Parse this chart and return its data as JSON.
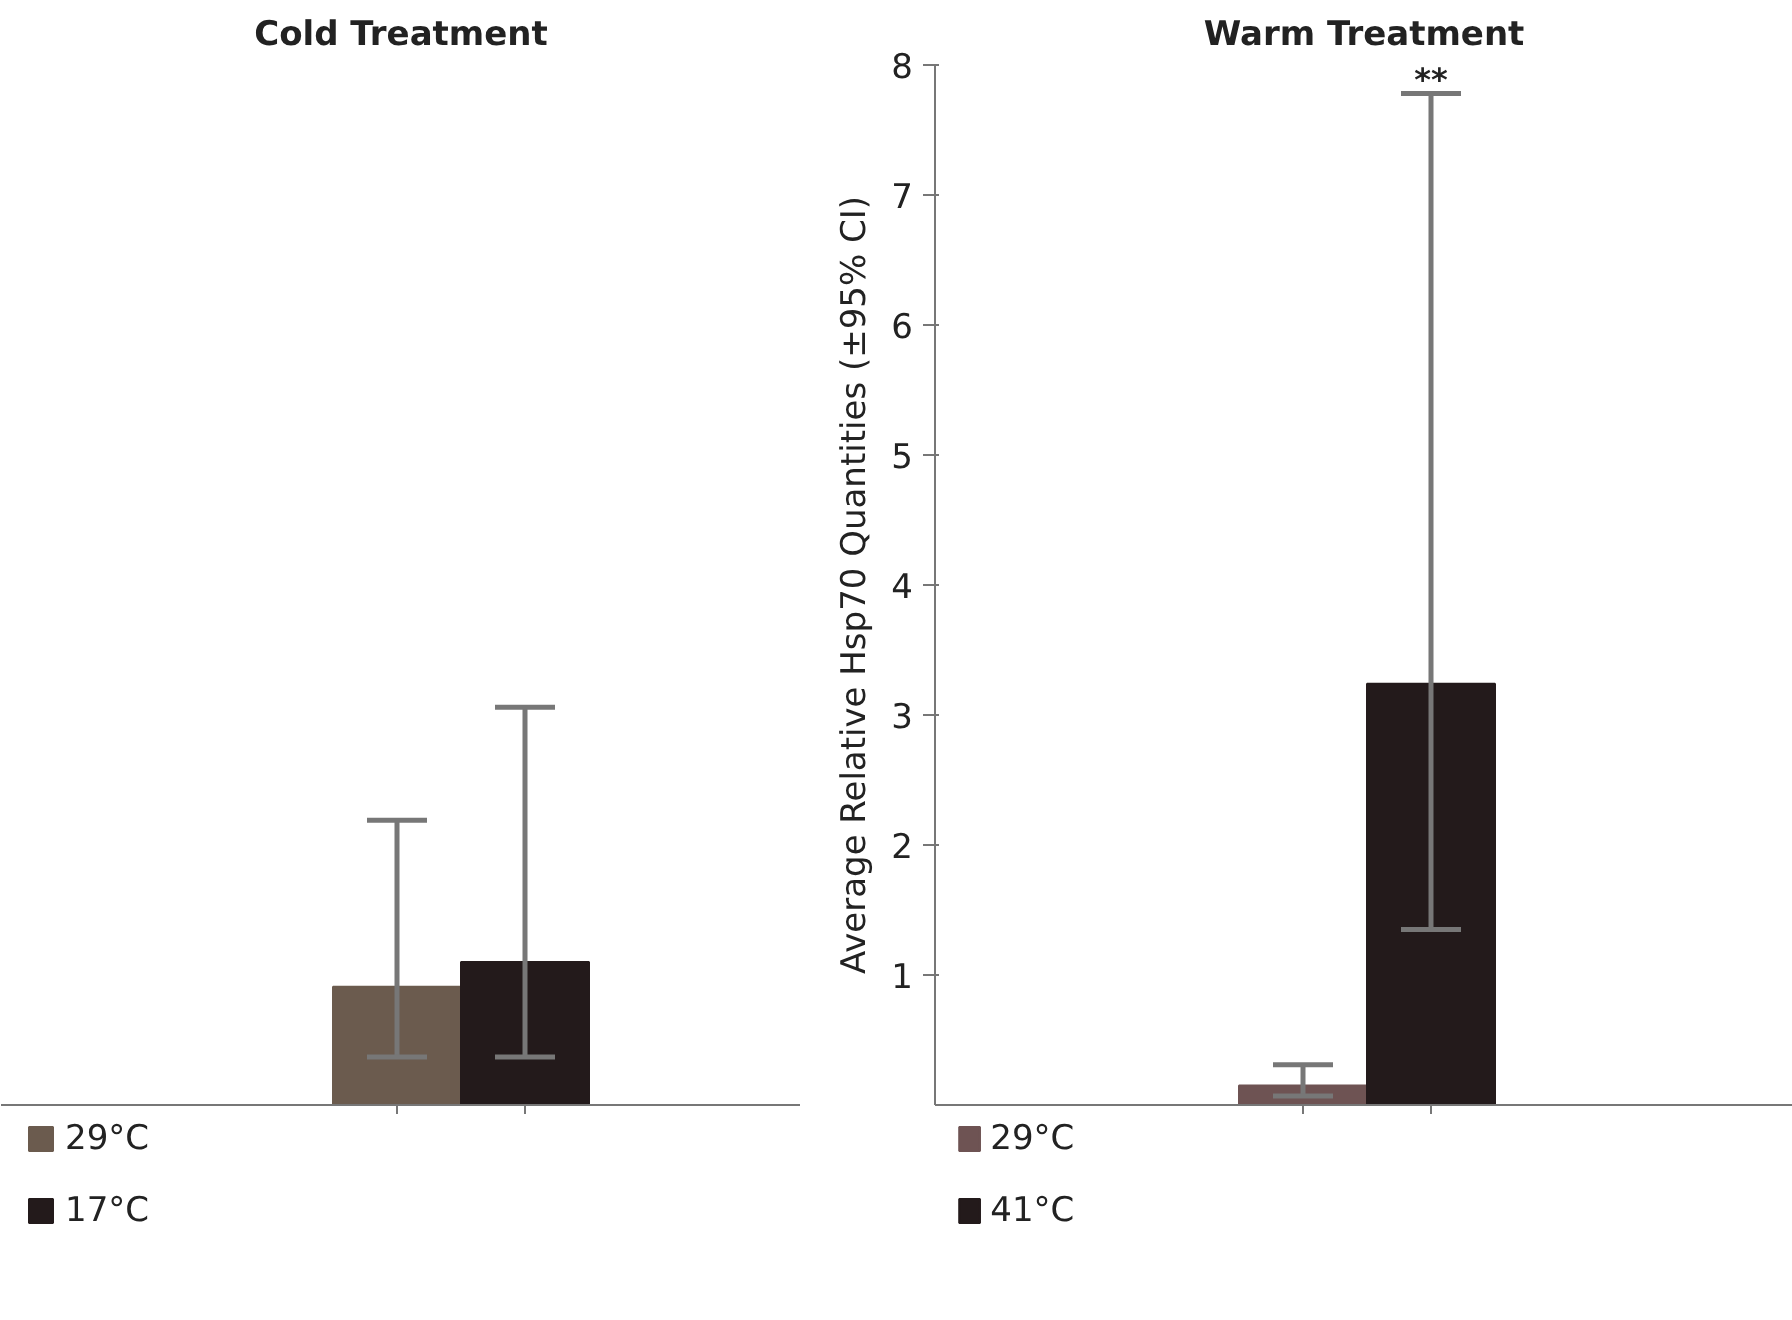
{
  "chart_data": [
    {
      "type": "bar",
      "title": "Cold Treatment",
      "categories": [
        null
      ],
      "ylim": [
        0,
        8
      ],
      "tick_labels": false,
      "legend": "bottom left",
      "grid": false,
      "series": [
        {
          "name": "29°C",
          "color": "#6b5b4e",
          "values": [
            0.91
          ],
          "errors": [
            [
              0.37,
              2.19
            ]
          ]
        },
        {
          "name": "17°C",
          "color": "#231a1b",
          "values": [
            1.1
          ],
          "errors": [
            [
              0.37,
              3.06
            ]
          ]
        }
      ]
    },
    {
      "type": "bar",
      "title": "Warm Treatment",
      "categories": [
        null
      ],
      "ylabel": "Average Relative Hsp70 Quantities (±95% CI)",
      "ylim": [
        0,
        8
      ],
      "yticks": [
        1,
        2,
        3,
        4,
        5,
        6,
        7,
        8
      ],
      "tick_labels": "y",
      "legend": "bottom left",
      "grid": false,
      "annotations": [
        "**"
      ],
      "series": [
        {
          "name": "29°C",
          "color": "#6e5353",
          "values": [
            0.15
          ],
          "errors": [
            [
              0.07,
              0.31
            ]
          ]
        },
        {
          "name": "41°C",
          "color": "#231a1b",
          "values": [
            3.24
          ],
          "errors": [
            [
              1.35,
              7.78
            ]
          ]
        }
      ]
    }
  ]
}
